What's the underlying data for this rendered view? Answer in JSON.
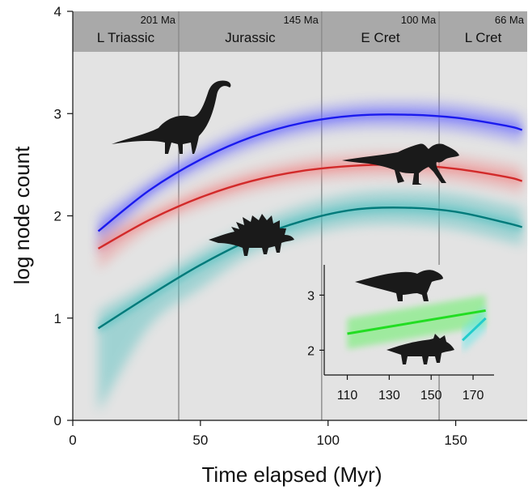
{
  "chart_data": {
    "type": "line",
    "xlabel": "Time elapsed (Myr)",
    "ylabel": "log node count",
    "xlim": [
      0,
      178
    ],
    "ylim": [
      0,
      4
    ],
    "x_ticks": [
      0,
      50,
      100,
      150
    ],
    "y_ticks": [
      0,
      1,
      2,
      3,
      4
    ],
    "grid": false,
    "legend": "none",
    "eras": [
      {
        "name": "L Triassic",
        "age": "201 Ma",
        "start": 0,
        "end": 41.5
      },
      {
        "name": "Jurassic",
        "age": "145 Ma",
        "start": 41.5,
        "end": 97.5
      },
      {
        "name": "E Cret",
        "age": "100 Ma",
        "start": 97.5,
        "end": 143.5
      },
      {
        "name": "L Cret",
        "age": "66 Ma",
        "start": 143.5,
        "end": 178
      }
    ],
    "era_boundaries": [
      41.5,
      97.5,
      143.5
    ],
    "series": [
      {
        "color": "#1a1aee",
        "band_color": "#6b6bff",
        "x": [
          10,
          30,
          50,
          70,
          90,
          110,
          130,
          150,
          170,
          176
        ],
        "y": [
          1.85,
          2.25,
          2.55,
          2.77,
          2.91,
          2.98,
          2.99,
          2.96,
          2.88,
          2.84
        ]
      },
      {
        "color": "#d22a2a",
        "band_color": "#f08a8a",
        "x": [
          10,
          30,
          50,
          70,
          90,
          110,
          130,
          150,
          170,
          176
        ],
        "y": [
          1.68,
          1.96,
          2.18,
          2.34,
          2.44,
          2.49,
          2.5,
          2.46,
          2.38,
          2.34
        ]
      },
      {
        "color": "#007a7a",
        "band_color": "#4fbfbf",
        "x": [
          10,
          30,
          50,
          70,
          90,
          110,
          130,
          150,
          170,
          176
        ],
        "y": [
          0.9,
          1.22,
          1.52,
          1.77,
          1.95,
          2.06,
          2.08,
          2.04,
          1.93,
          1.89
        ]
      }
    ],
    "inset": {
      "x_ticks": [
        110,
        130,
        150,
        170
      ],
      "y_ticks": [
        2,
        3
      ],
      "xlim": [
        99,
        180
      ],
      "ylim": [
        1.55,
        3.55
      ],
      "series": [
        {
          "color": "#22dd22",
          "band_color": "#66f066",
          "x": [
            110,
            176
          ],
          "y": [
            2.3,
            2.72
          ]
        },
        {
          "color": "#22cccc",
          "band_color": "#66e8e8",
          "x": [
            165,
            176
          ],
          "y": [
            2.18,
            2.58
          ]
        }
      ]
    }
  },
  "silhouettes": [
    "sauropod-icon",
    "theropod-icon",
    "stegosaur-icon",
    "hadrosaur-icon",
    "ceratopsian-icon"
  ]
}
